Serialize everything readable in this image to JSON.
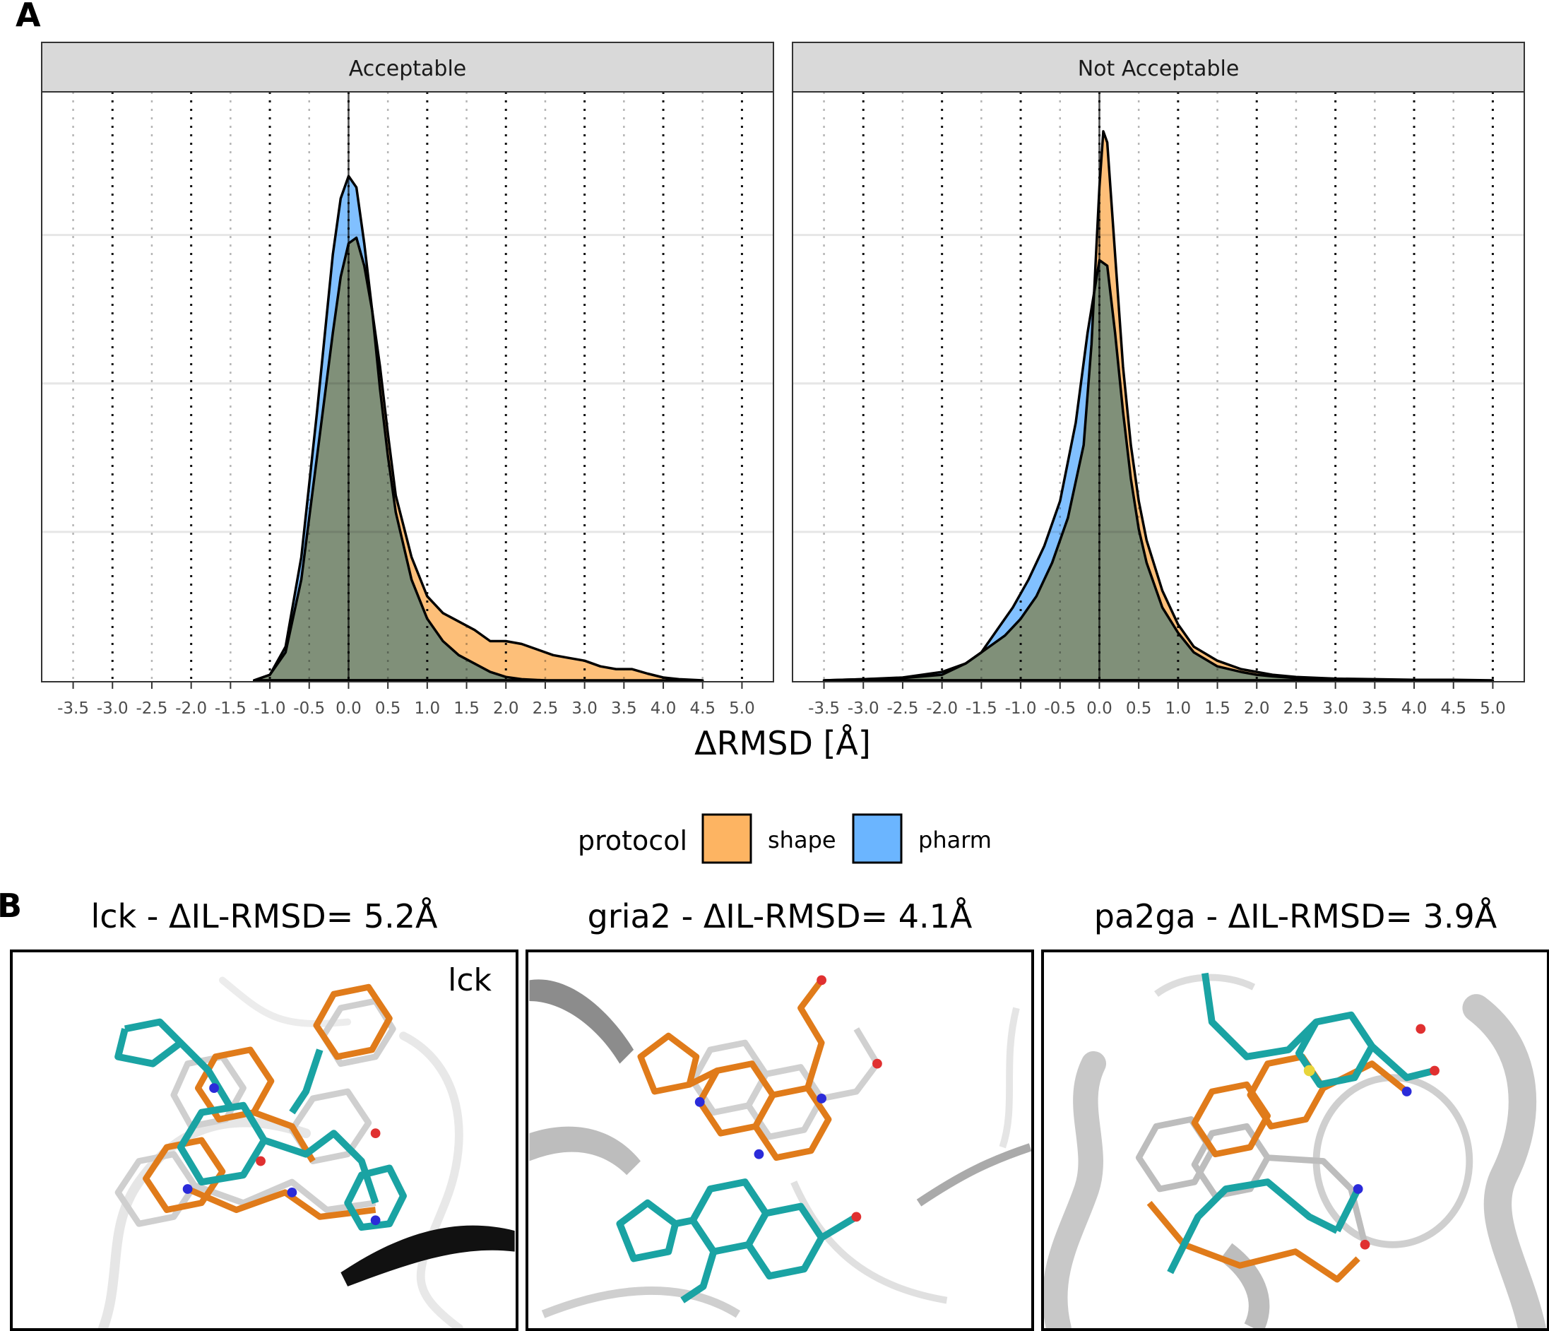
{
  "panel_labels": {
    "a": "A",
    "b": "B"
  },
  "chart_data": [
    {
      "type": "area",
      "facet": "Acceptable",
      "x_ticks": [
        -3.5,
        -3.0,
        -2.5,
        -2.0,
        -1.5,
        -1.0,
        -0.5,
        0.0,
        0.5,
        1.0,
        1.5,
        2.0,
        2.5,
        3.0,
        3.5,
        4.0,
        4.5,
        5.0
      ],
      "xlim": [
        -3.9,
        5.4
      ],
      "ylim": [
        0,
        1.0
      ],
      "xlabel": "ΔRMSD [Å]",
      "ylabel": "",
      "grid": true,
      "vline_x": 0,
      "series": [
        {
          "name": "shape",
          "color": "#FDB462",
          "x": [
            -1.2,
            -1.0,
            -0.8,
            -0.6,
            -0.4,
            -0.2,
            -0.1,
            0.0,
            0.1,
            0.2,
            0.3,
            0.4,
            0.5,
            0.6,
            0.8,
            1.0,
            1.2,
            1.4,
            1.6,
            1.8,
            2.0,
            2.2,
            2.4,
            2.6,
            2.8,
            3.0,
            3.2,
            3.4,
            3.6,
            3.8,
            4.0,
            4.2,
            4.5
          ],
          "y": [
            0.0,
            0.01,
            0.05,
            0.18,
            0.4,
            0.62,
            0.72,
            0.78,
            0.79,
            0.74,
            0.66,
            0.56,
            0.44,
            0.33,
            0.22,
            0.15,
            0.12,
            0.105,
            0.09,
            0.07,
            0.07,
            0.065,
            0.055,
            0.045,
            0.04,
            0.035,
            0.025,
            0.02,
            0.02,
            0.012,
            0.005,
            0.002,
            0.0
          ]
        },
        {
          "name": "pharm",
          "color": "#6BB5FF",
          "x": [
            -1.2,
            -1.0,
            -0.8,
            -0.6,
            -0.4,
            -0.2,
            -0.1,
            0.0,
            0.1,
            0.2,
            0.3,
            0.4,
            0.5,
            0.6,
            0.8,
            1.0,
            1.2,
            1.4,
            1.6,
            1.8,
            2.0,
            2.2,
            2.5
          ],
          "y": [
            0.0,
            0.01,
            0.06,
            0.22,
            0.48,
            0.76,
            0.86,
            0.9,
            0.88,
            0.78,
            0.66,
            0.52,
            0.4,
            0.3,
            0.18,
            0.11,
            0.07,
            0.045,
            0.03,
            0.015,
            0.006,
            0.002,
            0.0
          ]
        }
      ]
    },
    {
      "type": "area",
      "facet": "Not Acceptable",
      "x_ticks": [
        -3.5,
        -3.0,
        -2.5,
        -2.0,
        -1.5,
        -1.0,
        -0.5,
        0.0,
        0.5,
        1.0,
        1.5,
        2.0,
        2.5,
        3.0,
        3.5,
        4.0,
        4.5,
        5.0
      ],
      "xlim": [
        -3.9,
        5.4
      ],
      "ylim": [
        0,
        1.0
      ],
      "xlabel": "ΔRMSD [Å]",
      "ylabel": "",
      "grid": true,
      "vline_x": 0,
      "series": [
        {
          "name": "shape",
          "color": "#FDB462",
          "x": [
            -3.5,
            -3.0,
            -2.5,
            -2.0,
            -1.7,
            -1.5,
            -1.2,
            -1.0,
            -0.8,
            -0.6,
            -0.4,
            -0.2,
            -0.1,
            0.0,
            0.05,
            0.1,
            0.2,
            0.3,
            0.4,
            0.5,
            0.6,
            0.8,
            1.0,
            1.2,
            1.5,
            1.8,
            2.0,
            2.2,
            2.5,
            3.0,
            3.5,
            4.0,
            4.5,
            5.0
          ],
          "y": [
            0.0,
            0.002,
            0.004,
            0.01,
            0.03,
            0.05,
            0.08,
            0.11,
            0.15,
            0.21,
            0.29,
            0.42,
            0.6,
            0.88,
            0.98,
            0.96,
            0.76,
            0.56,
            0.42,
            0.32,
            0.25,
            0.16,
            0.1,
            0.06,
            0.035,
            0.02,
            0.015,
            0.01,
            0.006,
            0.003,
            0.002,
            0.001,
            0.001,
            0.0
          ]
        },
        {
          "name": "pharm",
          "color": "#6BB5FF",
          "x": [
            -3.5,
            -3.0,
            -2.5,
            -2.0,
            -1.7,
            -1.5,
            -1.3,
            -1.1,
            -0.9,
            -0.7,
            -0.5,
            -0.3,
            -0.15,
            0.0,
            0.1,
            0.2,
            0.3,
            0.4,
            0.5,
            0.6,
            0.8,
            1.0,
            1.2,
            1.5,
            1.8,
            2.0,
            2.2,
            2.5,
            3.0,
            3.5
          ],
          "y": [
            0.0,
            0.002,
            0.005,
            0.015,
            0.03,
            0.05,
            0.09,
            0.13,
            0.18,
            0.24,
            0.32,
            0.46,
            0.62,
            0.75,
            0.74,
            0.62,
            0.48,
            0.36,
            0.27,
            0.21,
            0.13,
            0.085,
            0.05,
            0.025,
            0.015,
            0.01,
            0.007,
            0.004,
            0.002,
            0.0
          ]
        }
      ]
    }
  ],
  "legend": {
    "title": "protocol",
    "items": [
      {
        "label": "shape",
        "color": "#FDB462"
      },
      {
        "label": "pharm",
        "color": "#6BB5FF"
      }
    ]
  },
  "structures": [
    {
      "title": "lck - ΔIL-RMSD= 5.2Å",
      "corner_label": "lck"
    },
    {
      "title": "gria2 - ΔIL-RMSD= 4.1Å",
      "corner_label": ""
    },
    {
      "title": "pa2ga - ΔIL-RMSD= 3.9Å",
      "corner_label": ""
    }
  ]
}
